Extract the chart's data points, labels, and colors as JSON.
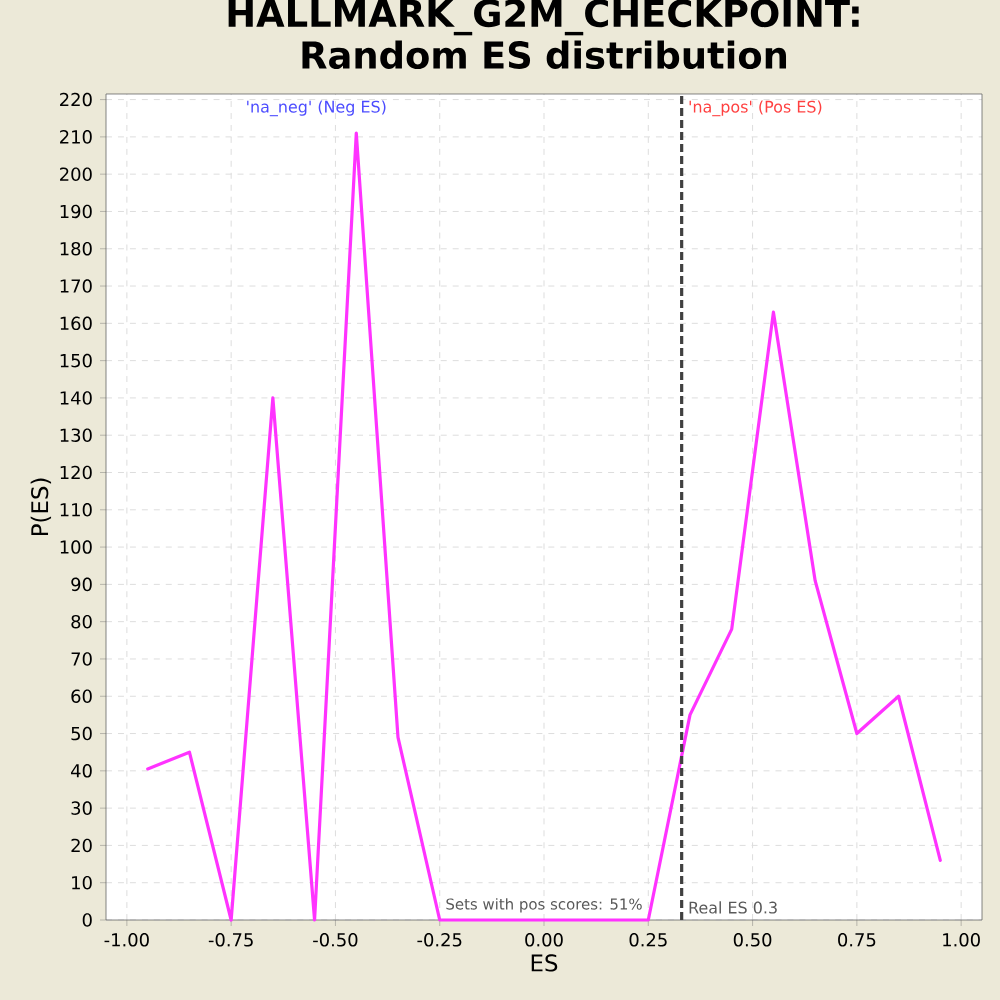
{
  "chart_data": {
    "type": "line",
    "title": "HALLMARK_G2M_CHECKPOINT: Random ES distribution",
    "xlabel": "ES",
    "ylabel": "P(ES)",
    "x": [
      -0.95,
      -0.85,
      -0.75,
      -0.65,
      -0.55,
      -0.45,
      -0.35,
      -0.25,
      -0.15,
      -0.05,
      0.05,
      0.15,
      0.25,
      0.35,
      0.45,
      0.55,
      0.65,
      0.75,
      0.85,
      0.95
    ],
    "series": [
      {
        "color": "#ff33ff",
        "values": [
          40.5,
          45,
          0,
          140,
          0,
          211,
          49,
          0,
          0,
          0,
          0,
          0,
          0,
          55,
          78,
          163,
          91,
          50,
          60,
          16
        ]
      }
    ],
    "xlim": [
      -1.05,
      1.05
    ],
    "ylim": [
      0,
      221.5
    ],
    "xticks": [
      {
        "value": -1,
        "label": "-1.00"
      },
      {
        "value": -0.75,
        "label": "-0.75"
      },
      {
        "value": -0.5,
        "label": "-0.50"
      },
      {
        "value": -0.25,
        "label": "-0.25"
      },
      {
        "value": 0,
        "label": "0.00"
      },
      {
        "value": 0.25,
        "label": "0.25"
      },
      {
        "value": 0.5,
        "label": "0.50"
      },
      {
        "value": 0.75,
        "label": "0.75"
      },
      {
        "value": 1,
        "label": "1.00"
      }
    ],
    "yticks": [
      0,
      10,
      20,
      30,
      40,
      50,
      60,
      70,
      80,
      90,
      100,
      110,
      120,
      130,
      140,
      150,
      160,
      170,
      180,
      190,
      200,
      210,
      220
    ],
    "grid": true,
    "marker": "none",
    "line_style": "solid",
    "ref_lines": [
      {
        "axis": "x",
        "value": 0.33,
        "label": "Real ES 0.3",
        "color": "#404040",
        "line_style": "dashed"
      }
    ],
    "annotations": [
      "'na_neg' (Neg ES)",
      "'na_pos' (Pos ES)",
      "Sets with pos scores: 51%"
    ]
  }
}
